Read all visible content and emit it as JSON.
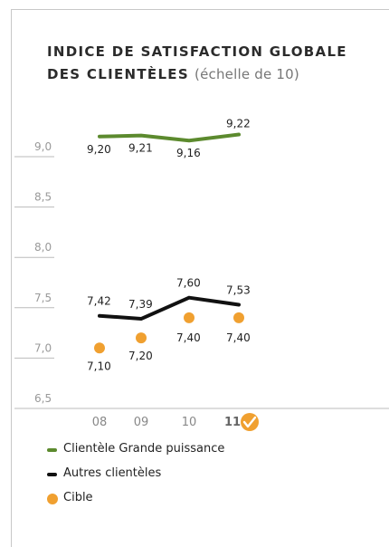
{
  "title": {
    "main": "INDICE DE SATISFACTION GLOBALE DES CLIENTÈLES",
    "sub": "(échelle de 10)"
  },
  "colors": {
    "green": "#5c8a2e",
    "black": "#111111",
    "orange": "#f0a030",
    "axis": "#999999",
    "tick_text": "#999999",
    "check": "#f0a030"
  },
  "chart_data": {
    "type": "line",
    "categories": [
      "08",
      "09",
      "10",
      "11"
    ],
    "highlight_category": "11",
    "highlight_icon": "check-icon",
    "y_ticks": [
      "6,5",
      "7,0",
      "7,5",
      "8,0",
      "8,5",
      "9,0"
    ],
    "ylim": [
      6.5,
      9.0
    ],
    "series": [
      {
        "name": "Clientèle Grande puissance",
        "kind": "line",
        "color": "#5c8a2e",
        "values": [
          9.2,
          9.21,
          9.16,
          9.22
        ],
        "labels": [
          "9,20",
          "9,21",
          "9,16",
          "9,22"
        ]
      },
      {
        "name": "Autres clientèles",
        "kind": "line",
        "color": "#111111",
        "values": [
          7.42,
          7.39,
          7.6,
          7.53
        ],
        "labels": [
          "7,42",
          "7,39",
          "7,60",
          "7,53"
        ]
      },
      {
        "name": "Cible",
        "kind": "dot",
        "color": "#f0a030",
        "values": [
          7.1,
          7.2,
          7.4,
          7.4
        ],
        "labels": [
          "7,10",
          "7,20",
          "7,40",
          "7,40"
        ]
      }
    ]
  },
  "legend": [
    {
      "label": "Clientèle Grande puissance",
      "shape": "line",
      "color": "#5c8a2e"
    },
    {
      "label": "Autres clientèles",
      "shape": "line",
      "color": "#111111"
    },
    {
      "label": "Cible",
      "shape": "dot",
      "color": "#f0a030"
    }
  ]
}
